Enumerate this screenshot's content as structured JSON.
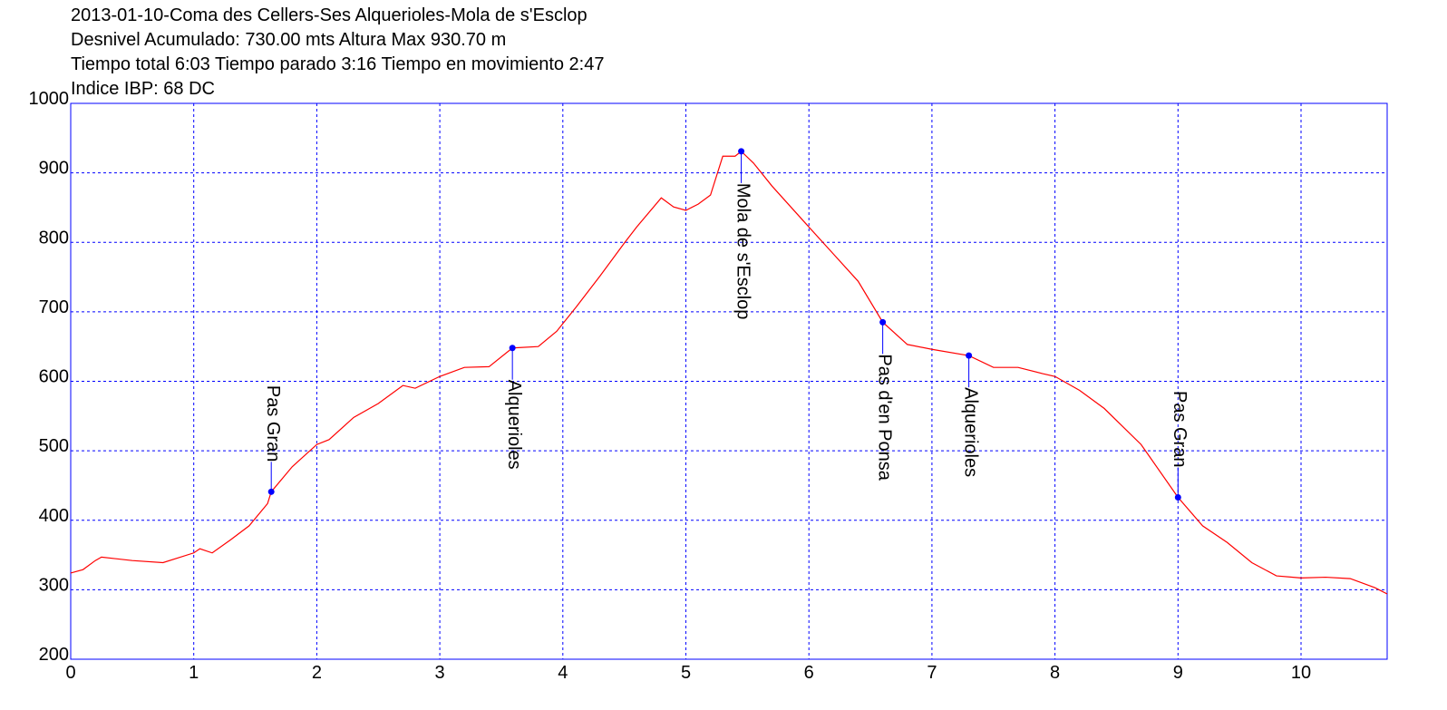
{
  "chart_data": {
    "type": "line",
    "title_lines": [
      "2013-01-10-Coma des Cellers-Ses Alquerioles-Mola de s'Esclop",
      "Desnivel Acumulado: 730.00 mts  Altura Max 930.70 m",
      "Tiempo total 6:03 Tiempo parado 3:16 Tiempo en movimiento 2:47",
      "Indice IBP: 68 DC"
    ],
    "x": [
      0,
      0.1,
      0.2,
      0.25,
      0.5,
      0.75,
      1.0,
      1.05,
      1.15,
      1.3,
      1.45,
      1.6,
      1.63,
      1.8,
      2.0,
      2.1,
      2.3,
      2.5,
      2.7,
      2.8,
      3.0,
      3.2,
      3.4,
      3.59,
      3.8,
      3.95,
      4.1,
      4.3,
      4.5,
      4.6,
      4.8,
      4.9,
      5.0,
      5.1,
      5.2,
      5.3,
      5.4,
      5.45,
      5.55,
      5.7,
      6.0,
      6.2,
      6.4,
      6.6,
      6.8,
      7.0,
      7.3,
      7.5,
      7.7,
      7.9,
      8.0,
      8.2,
      8.4,
      8.7,
      9.0,
      9.2,
      9.4,
      9.6,
      9.8,
      10.0,
      10.2,
      10.4,
      10.6,
      10.7
    ],
    "series": [
      {
        "color": "#ff0000",
        "values": [
          324,
          329,
          342,
          347,
          342,
          339,
          353,
          359,
          353,
          372,
          392,
          424,
          441,
          477,
          509,
          516,
          548,
          568,
          594,
          590,
          607,
          620,
          621,
          648,
          650,
          672,
          705,
          751,
          799,
          822,
          864,
          851,
          846,
          855,
          868,
          924,
          924,
          931,
          914,
          881,
          822,
          783,
          744,
          685,
          653,
          646,
          637,
          620,
          620,
          611,
          607,
          587,
          561,
          509,
          433,
          392,
          368,
          339,
          320,
          317,
          318,
          316,
          303,
          294
        ]
      }
    ],
    "waypoints": [
      {
        "label": "Pas Gran",
        "x": 1.63,
        "y": 441
      },
      {
        "label": "Alquerioles",
        "x": 3.59,
        "y": 648
      },
      {
        "label": "Mola de s'Esclop",
        "x": 5.45,
        "y": 931
      },
      {
        "label": "Pas d'en Ponsa",
        "x": 6.6,
        "y": 685
      },
      {
        "label": "Alquerioles",
        "x": 7.3,
        "y": 637
      },
      {
        "label": "Pas Gran",
        "x": 9.0,
        "y": 433
      }
    ],
    "waypoint_color": "#0000ff",
    "xlim": [
      0,
      10.7
    ],
    "ylim": [
      200,
      1000
    ],
    "xticks": [
      0,
      1,
      2,
      3,
      4,
      5,
      6,
      7,
      8,
      9,
      10
    ],
    "yticks": [
      200,
      300,
      400,
      500,
      600,
      700,
      800,
      900,
      1000
    ],
    "grid": true
  }
}
